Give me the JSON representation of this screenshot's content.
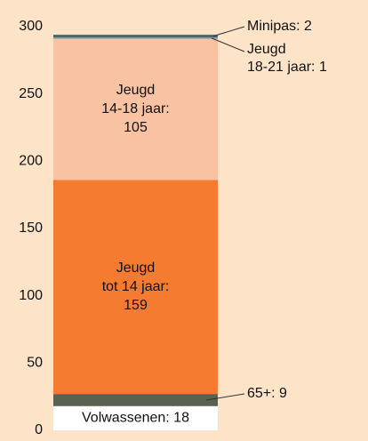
{
  "chart_data": {
    "type": "bar",
    "stacked": true,
    "categories": [
      null
    ],
    "ylim": [
      0,
      300
    ],
    "yticks": [
      0,
      50,
      100,
      150,
      200,
      250,
      300
    ],
    "series": [
      {
        "color": "#ffffff",
        "values": [
          18
        ],
        "value_labels": [
          "Volwassenen: 18"
        ]
      },
      {
        "color": "#5b6150",
        "values": [
          9
        ],
        "value_labels": [
          "65+: 9"
        ]
      },
      {
        "color": "#f47b30",
        "values": [
          159
        ],
        "value_labels": [
          "Jeugd\ntot 14 jaar:\n159"
        ]
      },
      {
        "color": "#f9c3a3",
        "values": [
          105
        ],
        "value_labels": [
          "Jeugd\n14-18 jaar:\n105"
        ]
      },
      {
        "color": "#8a98a6",
        "values": [
          1
        ],
        "value_labels": [
          "Jeugd\n18-21 jaar: 1"
        ]
      },
      {
        "color": "#4a6670",
        "values": [
          2
        ],
        "value_labels": [
          "Minipas: 2"
        ]
      }
    ]
  }
}
